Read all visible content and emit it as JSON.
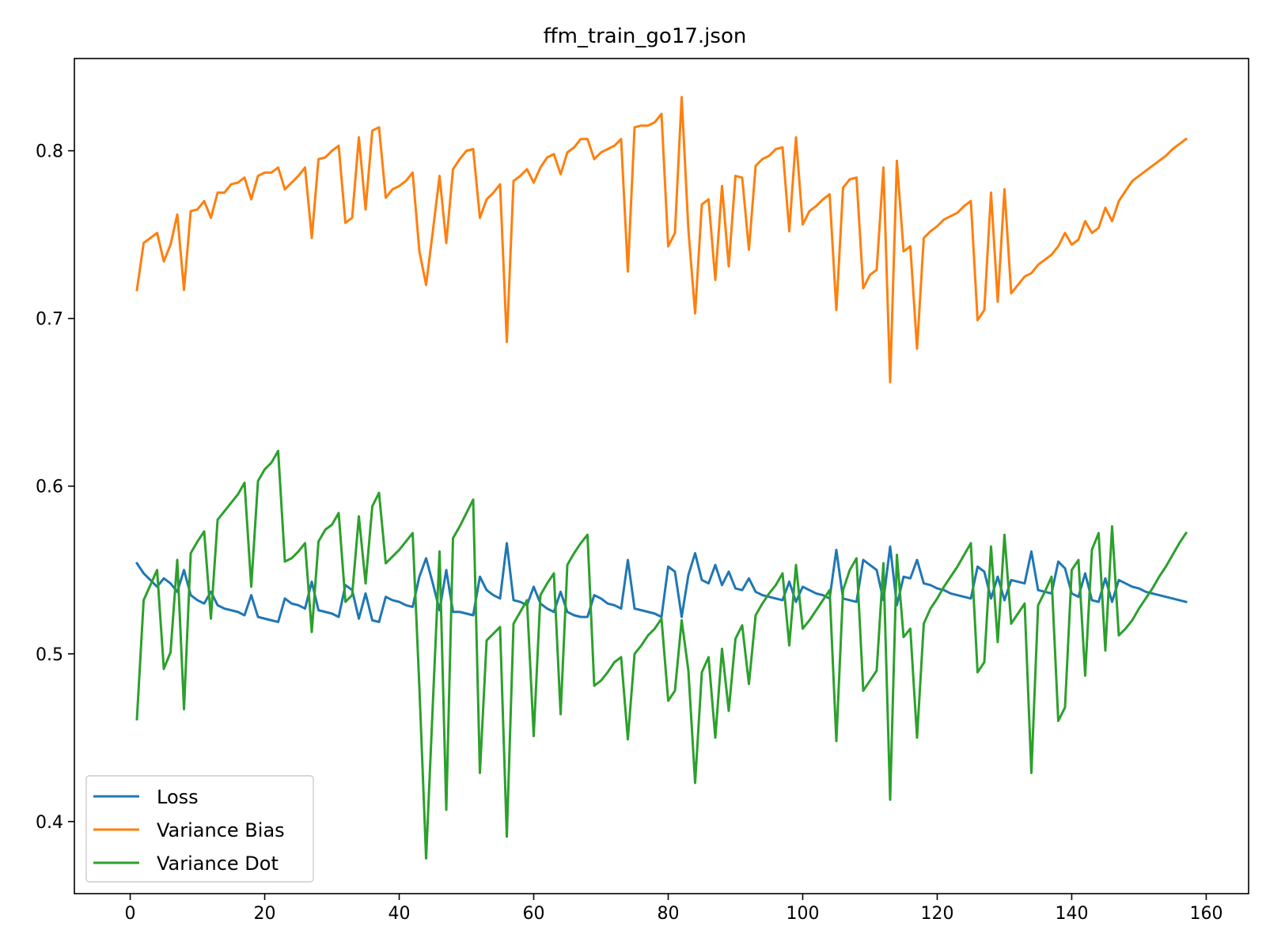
{
  "chart_data": {
    "type": "line",
    "title": "ffm_train_go17.json",
    "xlabel": "",
    "ylabel": "",
    "xlim": [
      -8.3,
      166.3
    ],
    "ylim": [
      0.357,
      0.855
    ],
    "grid": false,
    "legend_position": "lower-left",
    "xticks": [
      0,
      20,
      40,
      60,
      80,
      100,
      120,
      140,
      160
    ],
    "xtick_labels": [
      "0",
      "20",
      "40",
      "60",
      "80",
      "100",
      "120",
      "140",
      "160"
    ],
    "yticks": [
      0.4,
      0.5,
      0.6,
      0.7,
      0.8
    ],
    "ytick_labels": [
      "0.4",
      "0.5",
      "0.6",
      "0.7",
      "0.8"
    ],
    "x": [
      1,
      2,
      3,
      4,
      5,
      6,
      7,
      8,
      9,
      10,
      11,
      12,
      13,
      14,
      15,
      16,
      17,
      18,
      19,
      20,
      21,
      22,
      23,
      24,
      25,
      26,
      27,
      28,
      29,
      30,
      31,
      32,
      33,
      34,
      35,
      36,
      37,
      38,
      39,
      40,
      41,
      42,
      43,
      44,
      45,
      46,
      47,
      48,
      49,
      50,
      51,
      52,
      53,
      54,
      55,
      56,
      57,
      58,
      59,
      60,
      61,
      62,
      63,
      64,
      65,
      66,
      67,
      68,
      69,
      70,
      71,
      72,
      73,
      74,
      75,
      76,
      77,
      78,
      79,
      80,
      81,
      82,
      83,
      84,
      85,
      86,
      87,
      88,
      89,
      90,
      91,
      92,
      93,
      94,
      95,
      96,
      97,
      98,
      99,
      100,
      101,
      102,
      103,
      104,
      105,
      106,
      107,
      108,
      109,
      110,
      111,
      112,
      113,
      114,
      115,
      116,
      117,
      118,
      119,
      120,
      121,
      122,
      123,
      124,
      125,
      126,
      127,
      128,
      129,
      130,
      131,
      132,
      133,
      134,
      135,
      136,
      137,
      138,
      139,
      140,
      141,
      142,
      143,
      144,
      145,
      146,
      147,
      148,
      149,
      150,
      151,
      152,
      153,
      154,
      155,
      156,
      157
    ],
    "series": [
      {
        "name": "Loss",
        "color": "#1f77b4",
        "values": [
          0.554,
          0.548,
          0.544,
          0.54,
          0.545,
          0.542,
          0.537,
          0.55,
          0.535,
          0.532,
          0.53,
          0.537,
          0.529,
          0.527,
          0.526,
          0.525,
          0.523,
          0.535,
          0.522,
          0.521,
          0.52,
          0.519,
          0.533,
          0.53,
          0.529,
          0.527,
          0.543,
          0.526,
          0.525,
          0.524,
          0.522,
          0.541,
          0.538,
          0.521,
          0.536,
          0.52,
          0.519,
          0.534,
          0.532,
          0.531,
          0.529,
          0.528,
          0.546,
          0.557,
          0.542,
          0.526,
          0.55,
          0.525,
          0.525,
          0.524,
          0.523,
          0.546,
          0.538,
          0.535,
          0.533,
          0.566,
          0.532,
          0.531,
          0.529,
          0.54,
          0.53,
          0.527,
          0.525,
          0.537,
          0.525,
          0.523,
          0.522,
          0.522,
          0.535,
          0.533,
          0.53,
          0.529,
          0.527,
          0.556,
          0.527,
          0.526,
          0.525,
          0.524,
          0.522,
          0.552,
          0.549,
          0.522,
          0.547,
          0.56,
          0.544,
          0.542,
          0.553,
          0.541,
          0.549,
          0.539,
          0.538,
          0.545,
          0.537,
          0.535,
          0.534,
          0.533,
          0.532,
          0.543,
          0.531,
          0.54,
          0.538,
          0.536,
          0.535,
          0.533,
          0.562,
          0.533,
          0.532,
          0.531,
          0.556,
          0.553,
          0.55,
          0.532,
          0.564,
          0.529,
          0.546,
          0.545,
          0.556,
          0.542,
          0.541,
          0.539,
          0.538,
          0.536,
          0.535,
          0.534,
          0.533,
          0.552,
          0.549,
          0.533,
          0.546,
          0.532,
          0.544,
          0.543,
          0.542,
          0.561,
          0.538,
          0.537,
          0.536,
          0.555,
          0.551,
          0.536,
          0.534,
          0.548,
          0.532,
          0.531,
          0.545,
          0.531,
          0.544,
          0.542,
          0.54,
          0.539,
          0.537,
          0.536,
          0.535,
          0.534,
          0.533,
          0.532,
          0.531
        ]
      },
      {
        "name": "Variance Bias",
        "color": "#ff7f0e",
        "values": [
          0.717,
          0.745,
          0.748,
          0.751,
          0.734,
          0.744,
          0.762,
          0.717,
          0.764,
          0.765,
          0.77,
          0.76,
          0.775,
          0.775,
          0.78,
          0.781,
          0.784,
          0.771,
          0.785,
          0.787,
          0.787,
          0.79,
          0.777,
          0.781,
          0.785,
          0.79,
          0.748,
          0.795,
          0.796,
          0.8,
          0.803,
          0.757,
          0.76,
          0.808,
          0.765,
          0.812,
          0.814,
          0.772,
          0.777,
          0.779,
          0.782,
          0.787,
          0.74,
          0.72,
          0.752,
          0.785,
          0.745,
          0.789,
          0.795,
          0.8,
          0.801,
          0.76,
          0.771,
          0.775,
          0.78,
          0.686,
          0.782,
          0.785,
          0.789,
          0.781,
          0.79,
          0.796,
          0.798,
          0.786,
          0.799,
          0.802,
          0.807,
          0.807,
          0.795,
          0.799,
          0.801,
          0.803,
          0.807,
          0.728,
          0.814,
          0.815,
          0.815,
          0.817,
          0.822,
          0.743,
          0.751,
          0.832,
          0.753,
          0.703,
          0.768,
          0.771,
          0.723,
          0.779,
          0.731,
          0.785,
          0.784,
          0.741,
          0.791,
          0.795,
          0.797,
          0.801,
          0.802,
          0.752,
          0.808,
          0.756,
          0.764,
          0.767,
          0.771,
          0.774,
          0.705,
          0.778,
          0.783,
          0.784,
          0.718,
          0.726,
          0.729,
          0.79,
          0.662,
          0.794,
          0.74,
          0.743,
          0.682,
          0.748,
          0.752,
          0.755,
          0.759,
          0.761,
          0.763,
          0.767,
          0.77,
          0.699,
          0.705,
          0.775,
          0.71,
          0.777,
          0.715,
          0.72,
          0.725,
          0.727,
          0.732,
          0.735,
          0.738,
          0.743,
          0.751,
          0.744,
          0.747,
          0.758,
          0.751,
          0.754,
          0.766,
          0.758,
          0.77,
          0.776,
          0.782,
          0.785,
          0.788,
          0.791,
          0.794,
          0.797,
          0.801,
          0.804,
          0.807
        ]
      },
      {
        "name": "Variance Dot",
        "color": "#2ca02c",
        "values": [
          0.461,
          0.532,
          0.541,
          0.55,
          0.491,
          0.501,
          0.556,
          0.467,
          0.56,
          0.567,
          0.573,
          0.521,
          0.58,
          0.585,
          0.59,
          0.595,
          0.602,
          0.54,
          0.603,
          0.61,
          0.614,
          0.621,
          0.555,
          0.557,
          0.561,
          0.566,
          0.513,
          0.567,
          0.574,
          0.577,
          0.584,
          0.531,
          0.535,
          0.582,
          0.542,
          0.588,
          0.596,
          0.554,
          0.558,
          0.562,
          0.567,
          0.572,
          0.48,
          0.378,
          0.47,
          0.561,
          0.407,
          0.569,
          0.576,
          0.584,
          0.592,
          0.429,
          0.508,
          0.512,
          0.516,
          0.391,
          0.518,
          0.525,
          0.532,
          0.451,
          0.535,
          0.542,
          0.548,
          0.464,
          0.553,
          0.56,
          0.566,
          0.571,
          0.481,
          0.484,
          0.489,
          0.495,
          0.498,
          0.449,
          0.5,
          0.505,
          0.511,
          0.515,
          0.521,
          0.472,
          0.478,
          0.52,
          0.49,
          0.423,
          0.489,
          0.498,
          0.45,
          0.503,
          0.466,
          0.509,
          0.517,
          0.482,
          0.523,
          0.53,
          0.536,
          0.541,
          0.548,
          0.505,
          0.553,
          0.515,
          0.52,
          0.526,
          0.532,
          0.538,
          0.448,
          0.538,
          0.55,
          0.557,
          0.478,
          0.484,
          0.49,
          0.554,
          0.413,
          0.559,
          0.51,
          0.515,
          0.45,
          0.518,
          0.527,
          0.533,
          0.54,
          0.546,
          0.552,
          0.559,
          0.566,
          0.489,
          0.495,
          0.564,
          0.507,
          0.571,
          0.518,
          0.524,
          0.53,
          0.429,
          0.529,
          0.537,
          0.546,
          0.46,
          0.468,
          0.55,
          0.556,
          0.487,
          0.562,
          0.572,
          0.502,
          0.576,
          0.511,
          0.515,
          0.52,
          0.527,
          0.533,
          0.539,
          0.546,
          0.552,
          0.559,
          0.566,
          0.572
        ]
      }
    ]
  }
}
